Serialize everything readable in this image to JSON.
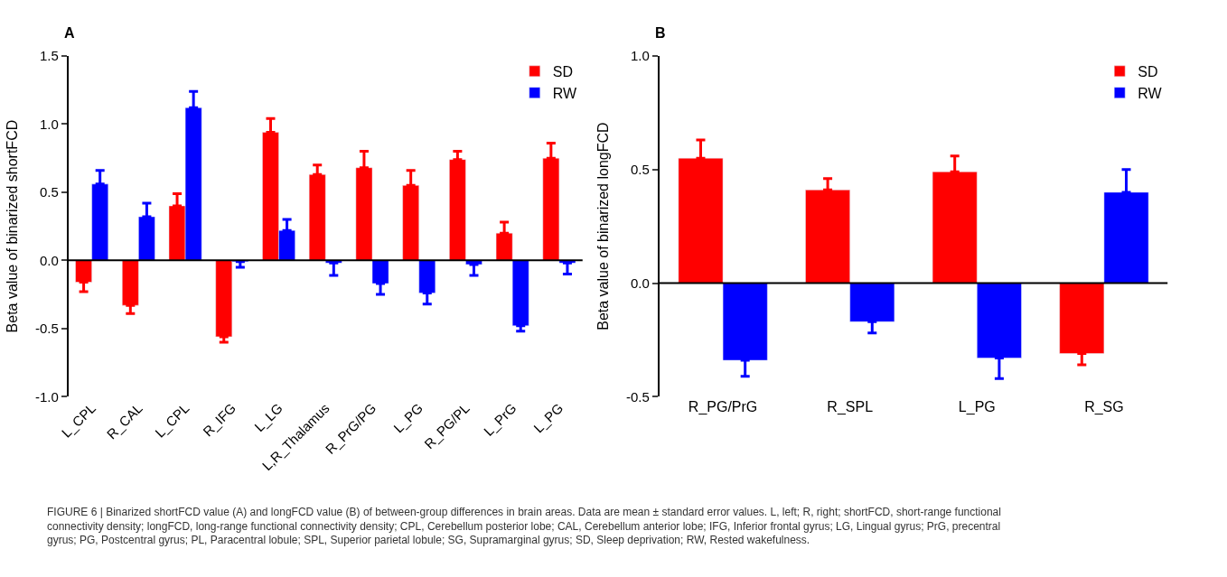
{
  "chart_data": [
    {
      "type": "bar",
      "ylabel": "Beta value of binarized shortFCD",
      "categories": [
        "L_CPL",
        "R_CAL",
        "L_CPL",
        "R_IFG",
        "L_LG",
        "L,R_Thalamus",
        "R_PrG/PG",
        "L_PG",
        "R_PG/PL",
        "L_PrG",
        "L_PG"
      ],
      "series": [
        {
          "name": "SD",
          "color": "#ff0000",
          "values": [
            -0.16,
            -0.33,
            0.4,
            -0.56,
            0.94,
            0.63,
            0.68,
            0.55,
            0.74,
            0.2,
            0.75
          ],
          "errors": [
            [
              -0.23,
              -0.16
            ],
            [
              -0.39,
              -0.33
            ],
            [
              0.4,
              0.49
            ],
            [
              -0.6,
              -0.56
            ],
            [
              0.94,
              1.04
            ],
            [
              0.63,
              0.7
            ],
            [
              0.68,
              0.8
            ],
            [
              0.55,
              0.66
            ],
            [
              0.74,
              0.8
            ],
            [
              0.2,
              0.28
            ],
            [
              0.75,
              0.86
            ]
          ]
        },
        {
          "name": "RW",
          "color": "#0000ff",
          "values": [
            0.56,
            0.32,
            1.12,
            -0.01,
            0.22,
            -0.02,
            -0.17,
            -0.24,
            -0.03,
            -0.48,
            -0.02
          ],
          "errors": [
            [
              0.56,
              0.66
            ],
            [
              0.32,
              0.42
            ],
            [
              1.12,
              1.24
            ],
            [
              -0.05,
              -0.01
            ],
            [
              0.22,
              0.3
            ],
            [
              -0.11,
              -0.02
            ],
            [
              -0.25,
              -0.17
            ],
            [
              -0.32,
              -0.24
            ],
            [
              -0.11,
              -0.03
            ],
            [
              -0.52,
              -0.48
            ],
            [
              -0.1,
              -0.02
            ]
          ]
        }
      ],
      "ylim": [
        -1.0,
        1.5
      ],
      "yticks": [
        {
          "value": -1.0,
          "label": "-1.0"
        },
        {
          "value": -0.5,
          "label": "-0.5"
        },
        {
          "value": 0,
          "label": "0.0"
        },
        {
          "value": 0.5,
          "label": "0.5"
        },
        {
          "value": 1.0,
          "label": "1.0"
        },
        {
          "value": 1.5,
          "label": "1.5"
        }
      ],
      "legend": "top right",
      "annotations": [
        "A",
        "FIGURE 6 | Binarized shortFCD value (A) and longFCD value (B) of between-group differences in brain areas. Data are mean ± standard error values. L, left; R, right; shortFCD, short-range functional connectivity density; longFCD, long-range functional connectivity density; CPL, Cerebellum posterior lobe; CAL, Cerebellum anterior lobe; IFG, Inferior frontal gyrus; LG, Lingual gyrus; PrG, precentral gyrus; PG, Postcentral gyrus; PL, Paracentral lobule; SPL, Superior parietal lobule; SG, Supramarginal gyrus; SD, Sleep deprivation; RW, Rested wakefulness."
      ]
    },
    {
      "type": "bar",
      "ylabel": "Beta value of binarized longFCD",
      "categories": [
        "R_PG/PrG",
        "R_SPL",
        "L_PG",
        "R_SG"
      ],
      "series": [
        {
          "name": "SD",
          "color": "#ff0000",
          "values": [
            0.55,
            0.41,
            0.49,
            -0.31
          ],
          "errors": [
            [
              0.55,
              0.63
            ],
            [
              0.41,
              0.46
            ],
            [
              0.49,
              0.56
            ],
            [
              -0.36,
              -0.31
            ]
          ]
        },
        {
          "name": "RW",
          "color": "#0000ff",
          "values": [
            -0.34,
            -0.17,
            -0.33,
            0.4
          ],
          "errors": [
            [
              -0.41,
              -0.34
            ],
            [
              -0.22,
              -0.17
            ],
            [
              -0.42,
              -0.33
            ],
            [
              0.4,
              0.5
            ]
          ]
        }
      ],
      "ylim": [
        -0.5,
        1.0
      ],
      "yticks": [
        {
          "value": -0.5,
          "label": "-0.5"
        },
        {
          "value": 0,
          "label": "0.0"
        },
        {
          "value": 0.5,
          "label": "0.5"
        },
        {
          "value": 1.0,
          "label": "1.0"
        }
      ],
      "legend": "top right",
      "annotations": [
        "B"
      ]
    }
  ]
}
